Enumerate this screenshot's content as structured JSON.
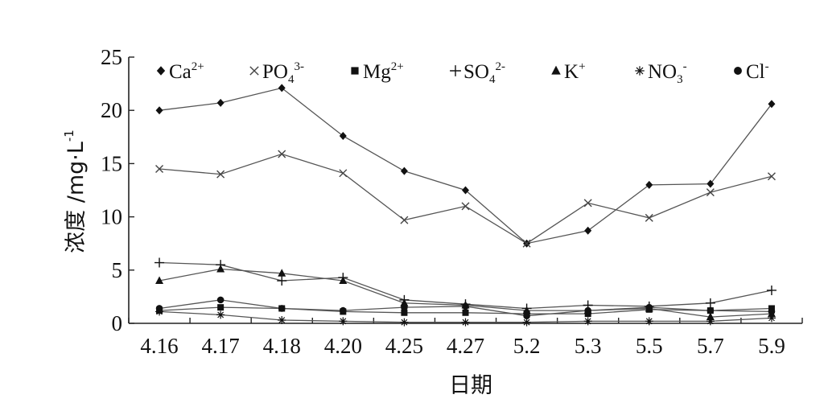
{
  "chart_data": {
    "type": "line",
    "xlabel": "日期",
    "ylabel": "浓度 /mg·L",
    "ylabel_exponent": "-1",
    "categories": [
      "4.16",
      "4.17",
      "4.18",
      "4.20",
      "4.25",
      "4.27",
      "5.2",
      "5.3",
      "5.5",
      "5.7",
      "5.9"
    ],
    "yticks": [
      "0",
      "5",
      "10",
      "15",
      "20",
      "25"
    ],
    "ylim": [
      0,
      25
    ],
    "grid": false,
    "legend_position": "top",
    "series": [
      {
        "name": "Ca",
        "sup": "2+",
        "sub": "",
        "marker": "diamond",
        "values": [
          20.0,
          20.7,
          22.1,
          17.6,
          14.3,
          12.5,
          7.5,
          8.7,
          13.0,
          13.1,
          20.6
        ]
      },
      {
        "name": "PO",
        "sup": "3-",
        "sub": "4",
        "marker": "x",
        "values": [
          14.5,
          14.0,
          15.9,
          14.1,
          9.7,
          11.0,
          7.5,
          11.3,
          9.9,
          12.3,
          13.8
        ]
      },
      {
        "name": "Mg",
        "sup": "2+",
        "sub": "",
        "marker": "square",
        "values": [
          1.2,
          1.5,
          1.4,
          1.1,
          1.0,
          1.0,
          0.9,
          0.9,
          1.3,
          1.2,
          1.4
        ]
      },
      {
        "name": "SO",
        "sup": "2-",
        "sub": "4",
        "marker": "plus",
        "values": [
          5.7,
          5.5,
          4.0,
          4.3,
          2.2,
          1.8,
          1.4,
          1.7,
          1.6,
          1.9,
          3.1
        ]
      },
      {
        "name": "K",
        "sup": "+",
        "sub": "",
        "marker": "triangle",
        "values": [
          4.0,
          5.1,
          4.7,
          4.0,
          1.9,
          1.7,
          1.2,
          1.2,
          1.4,
          0.6,
          0.9
        ]
      },
      {
        "name": "NO",
        "sup": "-",
        "sub": "3",
        "marker": "asterisk",
        "values": [
          1.1,
          0.8,
          0.3,
          0.2,
          0.1,
          0.1,
          0.1,
          0.2,
          0.2,
          0.2,
          0.5
        ]
      },
      {
        "name": "Cl",
        "sup": "-",
        "sub": "",
        "marker": "circle",
        "values": [
          1.4,
          2.2,
          1.4,
          1.2,
          1.5,
          1.6,
          0.7,
          1.2,
          1.5,
          1.2,
          1.1
        ]
      }
    ]
  }
}
